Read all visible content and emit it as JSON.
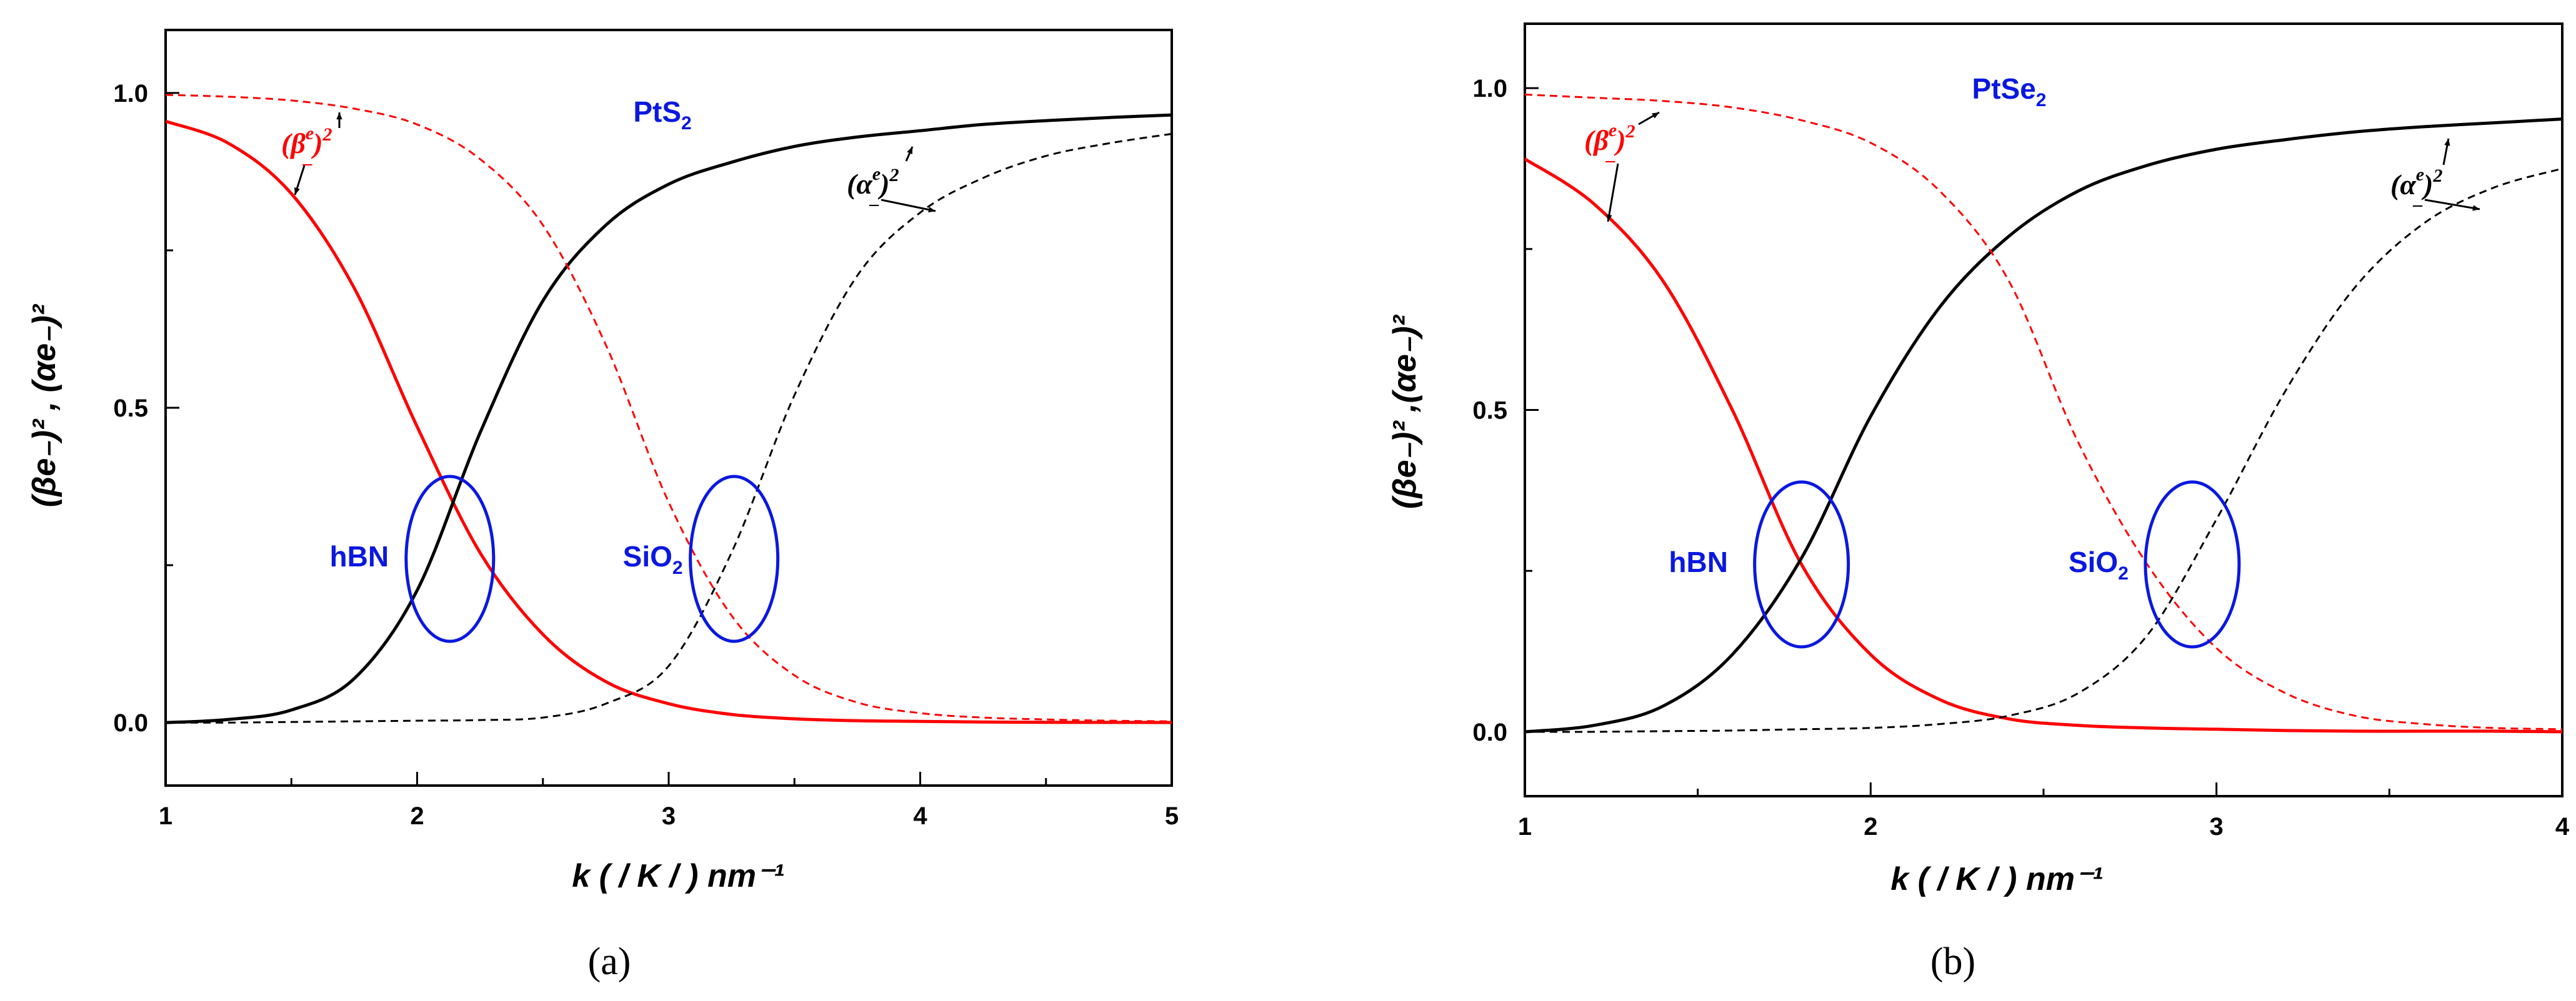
{
  "chart_data": [
    {
      "type": "line",
      "panel_label": "(a)",
      "title": "PtS2",
      "title_main": "PtS",
      "title_sub": "2",
      "xlabel": "k ( / K / ) nm⁻¹",
      "ylabel": "(βe₋)² , (αe₋)²",
      "xlim": [
        1,
        5
      ],
      "ylim": [
        -0.1,
        1.1
      ],
      "xticks": [
        "1",
        "2",
        "3",
        "4",
        "5"
      ],
      "yticks": [
        "0.0",
        "0.5",
        "1.0"
      ],
      "x": [
        1.0,
        1.25,
        1.5,
        1.75,
        2.0,
        2.25,
        2.5,
        2.75,
        3.0,
        3.25,
        3.5,
        3.75,
        4.0,
        4.25,
        4.5,
        4.75,
        5.0
      ],
      "series": [
        {
          "name": "(βe₋)² hBN",
          "color": "#ff0000",
          "style": "solid",
          "values": [
            0.955,
            0.92,
            0.84,
            0.69,
            0.47,
            0.27,
            0.14,
            0.065,
            0.03,
            0.013,
            0.006,
            0.003,
            0.002,
            0.001,
            0.0005,
            0.0003,
            0.0002
          ]
        },
        {
          "name": "(αe₋)² hBN",
          "color": "#000000",
          "style": "solid",
          "values": [
            0.0,
            0.005,
            0.02,
            0.07,
            0.21,
            0.46,
            0.67,
            0.79,
            0.855,
            0.89,
            0.915,
            0.93,
            0.94,
            0.95,
            0.956,
            0.961,
            0.965
          ]
        },
        {
          "name": "(βe₋)² SiO2",
          "color": "#ff0000",
          "style": "dashed",
          "values": [
            0.997,
            0.994,
            0.988,
            0.975,
            0.95,
            0.895,
            0.79,
            0.6,
            0.35,
            0.17,
            0.075,
            0.032,
            0.015,
            0.008,
            0.005,
            0.003,
            0.002
          ]
        },
        {
          "name": "(αe₋)² SiO2",
          "color": "#000000",
          "style": "dashed",
          "values": [
            0.0,
            0.0,
            0.001,
            0.002,
            0.003,
            0.004,
            0.008,
            0.03,
            0.09,
            0.27,
            0.52,
            0.71,
            0.81,
            0.865,
            0.9,
            0.92,
            0.935
          ]
        }
      ],
      "annotations": [
        {
          "text_base": "(β",
          "sup": "e",
          "sub": "_",
          "close": ")",
          "power": "2",
          "color": "#ff0000"
        },
        {
          "text_base": "(α",
          "sup": "e",
          "sub": "_",
          "close": ")",
          "power": "2",
          "color": "#000000"
        }
      ],
      "ellipses": [
        {
          "label": "hBN",
          "cx": 2.13,
          "cy": 0.26
        },
        {
          "label": "SiO",
          "label_sub": "2",
          "cx": 3.26,
          "cy": 0.26
        }
      ]
    },
    {
      "type": "line",
      "panel_label": "(b)",
      "title": "PtSe2",
      "title_main": "PtSe",
      "title_sub": "2",
      "xlabel": "k ( / K / ) nm⁻¹",
      "ylabel": "(βe₋)² ,(αe₋)²",
      "xlim": [
        1,
        4
      ],
      "ylim": [
        -0.1,
        1.1
      ],
      "xticks": [
        "1",
        "2",
        "3",
        "4"
      ],
      "yticks": [
        "0.0",
        "0.5",
        "1.0"
      ],
      "x": [
        1.0,
        1.2,
        1.4,
        1.6,
        1.8,
        2.0,
        2.2,
        2.4,
        2.6,
        2.8,
        3.0,
        3.2,
        3.4,
        3.6,
        3.8,
        4.0
      ],
      "series": [
        {
          "name": "(βe₋)² hBN",
          "color": "#ff0000",
          "style": "solid",
          "values": [
            0.89,
            0.82,
            0.7,
            0.5,
            0.26,
            0.12,
            0.05,
            0.02,
            0.01,
            0.006,
            0.004,
            0.002,
            0.001,
            0.001,
            0.001,
            0.0
          ]
        },
        {
          "name": "(αe₋)² hBN",
          "color": "#000000",
          "style": "solid",
          "values": [
            0.0,
            0.01,
            0.04,
            0.12,
            0.27,
            0.49,
            0.66,
            0.77,
            0.84,
            0.88,
            0.905,
            0.92,
            0.932,
            0.94,
            0.946,
            0.952
          ]
        },
        {
          "name": "(βe₋)² SiO2",
          "color": "#ff0000",
          "style": "dashed",
          "values": [
            0.99,
            0.985,
            0.98,
            0.97,
            0.95,
            0.915,
            0.84,
            0.7,
            0.45,
            0.26,
            0.13,
            0.06,
            0.025,
            0.012,
            0.006,
            0.004
          ]
        },
        {
          "name": "(αe₋)² SiO2",
          "color": "#000000",
          "style": "dashed",
          "values": [
            0.0,
            0.0,
            0.001,
            0.002,
            0.004,
            0.006,
            0.012,
            0.025,
            0.06,
            0.15,
            0.33,
            0.53,
            0.69,
            0.79,
            0.845,
            0.875
          ]
        }
      ],
      "annotations": [
        {
          "text_base": "(β",
          "sup": "e",
          "sub": "_",
          "close": ")",
          "power": "2",
          "color": "#ff0000"
        },
        {
          "text_base": "(α",
          "sup": "e",
          "sub": "_",
          "close": ")",
          "power": "2",
          "color": "#000000"
        }
      ],
      "ellipses": [
        {
          "label": "hBN",
          "cx": 1.8,
          "cy": 0.26
        },
        {
          "label": "SiO",
          "label_sub": "2",
          "cx": 2.93,
          "cy": 0.26
        }
      ]
    }
  ]
}
